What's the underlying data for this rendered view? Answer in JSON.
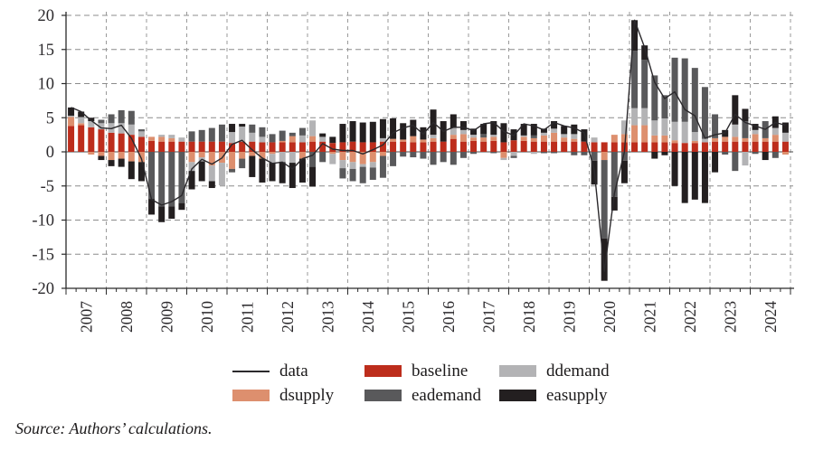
{
  "source": {
    "text": "Source: Authors’ calculations."
  },
  "legend": {
    "columns": [
      [
        {
          "label": "data",
          "swatch": "line",
          "series": "data"
        },
        {
          "label": "dsupply",
          "swatch": "box",
          "series": "dsupply"
        }
      ],
      [
        {
          "label": "baseline",
          "swatch": "box",
          "series": "baseline"
        },
        {
          "label": "eademand",
          "swatch": "box",
          "series": "eademand"
        }
      ],
      [
        {
          "label": "ddemand",
          "swatch": "box",
          "series": "ddemand"
        },
        {
          "label": "easupply",
          "swatch": "box",
          "series": "easupply"
        }
      ]
    ]
  },
  "chart_data": {
    "type": "bar",
    "subtype": "stacked-bars-with-line-overlay",
    "title": "",
    "xlabel": "",
    "ylabel": "",
    "x_labels": [
      "2007",
      "2008",
      "2009",
      "2010",
      "2011",
      "2012",
      "2013",
      "2014",
      "2015",
      "2016",
      "2017",
      "2018",
      "2019",
      "2020",
      "2021",
      "2022",
      "2023",
      "2024"
    ],
    "quarters_per_year": 4,
    "y_axis": {
      "min": -20,
      "max": 20,
      "tick_step": 5,
      "ticks": [
        20,
        15,
        10,
        5,
        0,
        -5,
        -10,
        -15,
        -20
      ]
    },
    "grid": {
      "horizontal_dashed": true,
      "vertical_dashed_per_year": true,
      "zero_line_solid": true
    },
    "series": [
      {
        "name": "baseline",
        "color": "#bd2d1c",
        "values": [
          3.8,
          3.9,
          3.6,
          3.3,
          2.8,
          2.7,
          2.5,
          2.2,
          1.6,
          1.5,
          1.5,
          1.5,
          1.5,
          1.5,
          1.5,
          1.5,
          1.3,
          1.5,
          1.5,
          1.4,
          1.4,
          1.4,
          1.4,
          1.4,
          1.5,
          1.5,
          1.3,
          1.4,
          1.5,
          1.4,
          1.4,
          1.5,
          1.5,
          1.5,
          1.4,
          1.4,
          1.5,
          1.5,
          1.9,
          1.5,
          1.6,
          1.5,
          1.6,
          1.4,
          1.7,
          1.6,
          1.5,
          1.5,
          1.5,
          1.5,
          1.5,
          1.5,
          1.4,
          1.4,
          1.4,
          1.4,
          1.4,
          1.4,
          1.4,
          1.4,
          1.3,
          1.3,
          1.3,
          1.4,
          1.5,
          1.5,
          1.5,
          1.5,
          1.5,
          1.5,
          1.5,
          1.5
        ]
      },
      {
        "name": "dsupply",
        "color": "#dd8f6e",
        "values": [
          1.3,
          0.3,
          -0.4,
          -0.6,
          -1.2,
          -1.0,
          -1.4,
          -1.5,
          0.6,
          0.7,
          0.5,
          0.0,
          -1.5,
          -0.8,
          -2.0,
          -1.6,
          -2.5,
          -1.0,
          -0.6,
          -1.0,
          -0.3,
          0.2,
          0.9,
          -1.0,
          0.8,
          0.0,
          -0.3,
          -1.2,
          -1.5,
          -1.8,
          -1.5,
          -0.6,
          0.4,
          0.3,
          0.9,
          0.4,
          0.5,
          0.0,
          0.6,
          1.1,
          0.5,
          0.6,
          0.6,
          -0.9,
          0.0,
          0.6,
          0.5,
          0.9,
          1.3,
          0.6,
          0.4,
          0.0,
          0.0,
          -1.2,
          1.1,
          1.2,
          2.5,
          2.5,
          1.0,
          1.0,
          0.4,
          0.0,
          0.3,
          0.0,
          0.5,
          0.7,
          0.7,
          0.5,
          1.1,
          0.5,
          1.0,
          -0.4
        ]
      },
      {
        "name": "ddemand",
        "color": "#b3b3b5",
        "values": [
          0.2,
          0.9,
          0.9,
          0.9,
          1.4,
          1.5,
          1.5,
          0.8,
          0.0,
          0.3,
          0.5,
          0.6,
          -1.3,
          -0.6,
          -2.3,
          -3.3,
          1.6,
          2.2,
          1.3,
          0.8,
          -1.3,
          -1.5,
          -1.6,
          1.0,
          2.3,
          0.7,
          -1.5,
          -1.2,
          -1.0,
          -0.4,
          -0.8,
          0.5,
          0.0,
          0.0,
          0.0,
          0.0,
          0.5,
          0.0,
          1.0,
          0.6,
          0.4,
          0.0,
          0.3,
          -0.3,
          -0.6,
          0.2,
          -0.3,
          0.4,
          0.6,
          0.5,
          0.7,
          0.0,
          0.7,
          0.0,
          0.0,
          2.0,
          2.5,
          2.5,
          2.2,
          2.5,
          2.7,
          3.1,
          1.3,
          0.5,
          0.0,
          0.0,
          1.8,
          -2.0,
          0.6,
          0.0,
          1.0,
          1.3
        ]
      },
      {
        "name": "eademand",
        "color": "#59595b",
        "values": [
          0.0,
          0.0,
          0.0,
          0.5,
          1.3,
          1.9,
          2.0,
          0.3,
          -6.9,
          -8.0,
          -8.0,
          -7.5,
          1.5,
          1.7,
          2.0,
          2.5,
          -0.5,
          -1.4,
          1.2,
          1.4,
          1.2,
          1.5,
          0.5,
          1.1,
          -2.2,
          -1.5,
          0.0,
          -1.5,
          -1.8,
          -2.4,
          -1.8,
          -3.2,
          -2.1,
          -0.7,
          -0.8,
          -1.0,
          -1.9,
          -1.5,
          -1.9,
          -0.9,
          -0.3,
          0.5,
          -0.2,
          0.0,
          -0.3,
          0.0,
          0.4,
          -0.2,
          -0.2,
          0.0,
          -0.5,
          -0.5,
          -1.3,
          -11.5,
          -6.6,
          -1.3,
          8.4,
          7.1,
          6.6,
          3.4,
          9.4,
          9.3,
          9.4,
          7.6,
          3.5,
          -0.4,
          -2.8,
          2.5,
          -0.3,
          2.5,
          -0.9,
          0.0
        ]
      },
      {
        "name": "easupply",
        "color": "#231f20",
        "values": [
          1.2,
          0.8,
          0.5,
          -0.6,
          -0.9,
          -1.2,
          -2.6,
          -2.8,
          -2.3,
          -2.3,
          -1.8,
          -1.0,
          -2.7,
          -2.9,
          -1.0,
          0.0,
          1.2,
          0.4,
          -3.1,
          -3.5,
          -2.7,
          -3.1,
          -3.7,
          -3.5,
          -2.9,
          0.5,
          0.9,
          2.7,
          3.0,
          2.9,
          3.0,
          2.8,
          3.0,
          2.4,
          2.4,
          1.8,
          3.7,
          3.0,
          2.0,
          1.3,
          0.9,
          1.5,
          2.0,
          2.8,
          1.6,
          1.7,
          1.7,
          0.6,
          1.1,
          1.2,
          1.4,
          1.8,
          -3.5,
          -6.2,
          -2.0,
          -3.3,
          4.5,
          2.1,
          -1.0,
          -0.5,
          -5.0,
          -7.5,
          -7.0,
          -7.5,
          -3.0,
          1.0,
          4.3,
          1.8,
          0.9,
          -1.2,
          1.7,
          1.5
        ]
      }
    ],
    "line": {
      "name": "data",
      "color": "#2b292c",
      "values": [
        6.5,
        5.9,
        4.6,
        3.5,
        3.4,
        3.9,
        2.0,
        -1.0,
        -7.0,
        -7.8,
        -7.3,
        -6.4,
        -2.5,
        -1.1,
        -1.8,
        -0.9,
        1.1,
        1.7,
        0.3,
        -0.9,
        -1.7,
        -1.5,
        -2.5,
        -1.0,
        -0.5,
        1.2,
        0.4,
        0.2,
        0.2,
        -0.3,
        0.3,
        1.0,
        2.8,
        3.5,
        3.9,
        2.6,
        4.3,
        3.0,
        3.6,
        3.6,
        3.1,
        4.1,
        4.3,
        3.0,
        2.4,
        4.1,
        3.8,
        3.2,
        4.3,
        3.8,
        3.5,
        2.8,
        -2.7,
        -17.5,
        -6.1,
        0.0,
        19.3,
        15.3,
        10.2,
        7.8,
        8.8,
        6.2,
        5.3,
        2.0,
        2.5,
        2.8,
        5.5,
        4.3,
        3.8,
        3.3,
        4.3,
        3.9
      ]
    }
  }
}
